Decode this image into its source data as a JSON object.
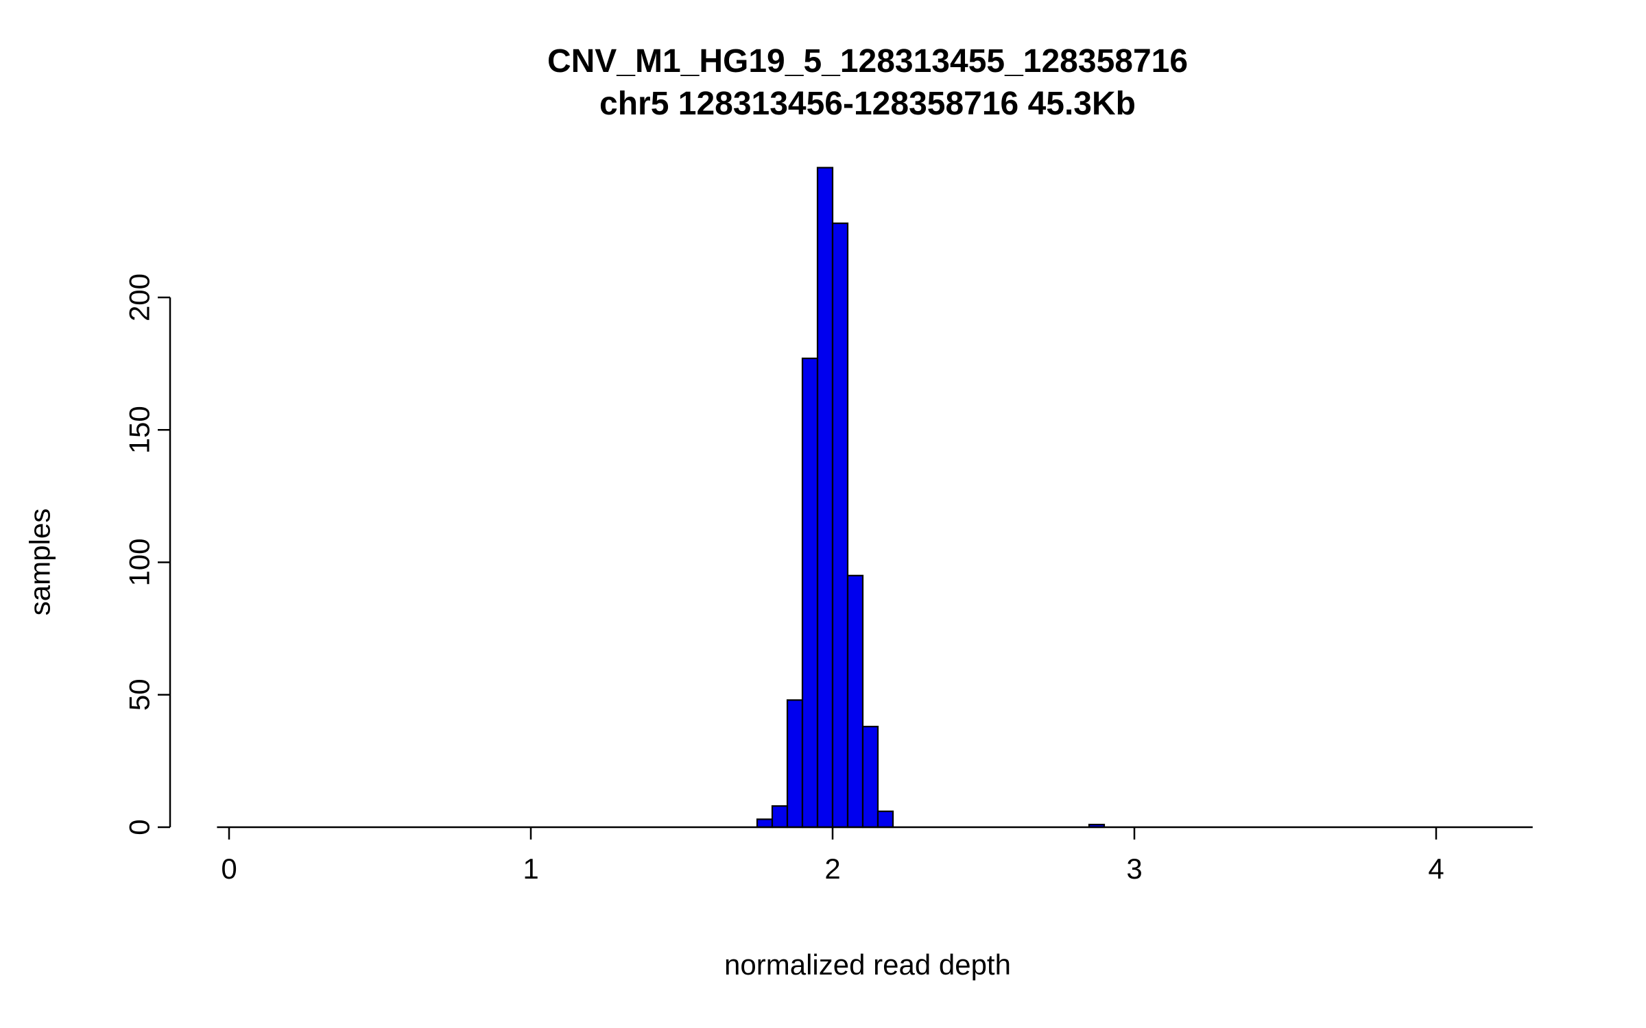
{
  "chart_data": {
    "type": "bar",
    "subtype": "histogram",
    "title": "CNV_M1_HG19_5_128313455_128358716",
    "subtitle": "chr5 128313456-128358716 45.3Kb",
    "xlabel": "normalized read depth",
    "ylabel": "samples",
    "xlim": [
      -0.04,
      4.32
    ],
    "ylim": [
      0,
      250
    ],
    "x_ticks": [
      0,
      1,
      2,
      3,
      4
    ],
    "y_ticks": [
      0,
      50,
      100,
      150,
      200
    ],
    "bar_color": "#0000ee",
    "bar_border_color": "#000000",
    "axis_color": "#000000",
    "background_color": "#ffffff",
    "bin_width": 0.05,
    "bins": [
      {
        "start": 1.75,
        "count": 3
      },
      {
        "start": 1.8,
        "count": 8
      },
      {
        "start": 1.85,
        "count": 48
      },
      {
        "start": 1.9,
        "count": 177
      },
      {
        "start": 1.95,
        "count": 249
      },
      {
        "start": 2.0,
        "count": 228
      },
      {
        "start": 2.05,
        "count": 95
      },
      {
        "start": 2.1,
        "count": 38
      },
      {
        "start": 2.15,
        "count": 6
      },
      {
        "start": 2.85,
        "count": 1
      }
    ],
    "legend": null,
    "grid": false
  }
}
